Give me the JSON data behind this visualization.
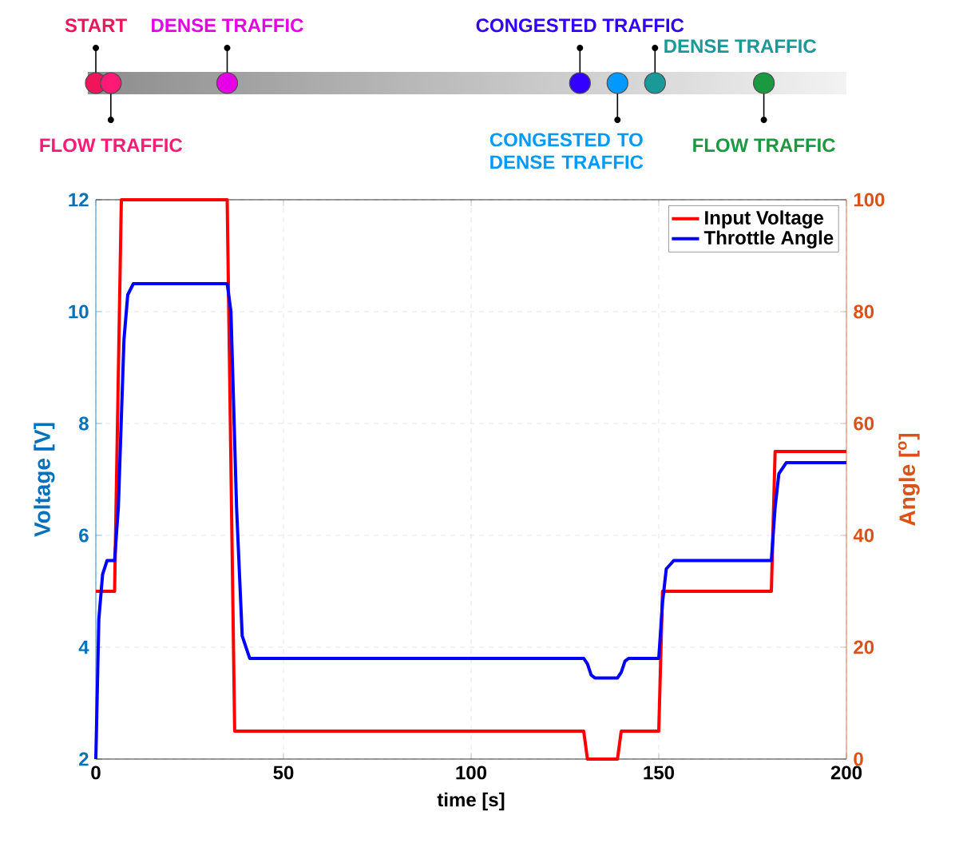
{
  "chart_data": {
    "type": "line",
    "xlabel": "time [s]",
    "ylabel": "Voltage [V]",
    "y2label": "Angle [$^{o}$]",
    "xlim": [
      0,
      200
    ],
    "xticks": [
      0,
      50,
      100,
      150,
      200
    ],
    "ylim": [
      2,
      12
    ],
    "yticks": [
      2,
      4,
      6,
      8,
      10,
      12
    ],
    "y2lim": [
      0,
      100
    ],
    "y2ticks": [
      0,
      20,
      40,
      60,
      80,
      100
    ],
    "grid": true,
    "legend": "top right",
    "marker": "none",
    "line_style": "solid",
    "series": [
      {
        "name": "Input Voltage",
        "color": "#ff0000",
        "axis": "y",
        "x": [
          0,
          5,
          6.8,
          35,
          37,
          130,
          131,
          139,
          140,
          150,
          151,
          180,
          181,
          200
        ],
        "values": [
          5,
          5,
          12,
          12,
          2.5,
          2.5,
          2,
          2,
          2.5,
          2.5,
          5,
          5,
          7.5,
          7.5
        ]
      },
      {
        "name": "Throttle Angle",
        "color": "#0000ff",
        "axis": "y2",
        "x": [
          0,
          0.8,
          1.8,
          3,
          5,
          6,
          7.5,
          8.5,
          10,
          35,
          36,
          37.5,
          39,
          41,
          130,
          131,
          132,
          133,
          139,
          140,
          141,
          142,
          150,
          151,
          152,
          154,
          180,
          181,
          182,
          184,
          200
        ],
        "values": [
          0,
          25,
          33,
          35.5,
          35.5,
          45,
          75,
          83,
          85,
          85,
          80,
          45,
          22,
          18,
          18,
          17,
          15,
          14.5,
          14.5,
          15.5,
          17.5,
          18,
          18,
          28,
          34,
          35.5,
          35.5,
          45,
          51,
          53,
          53
        ]
      }
    ],
    "annotations": [
      "START",
      "FLOW TRAFFIC",
      "DENSE TRAFFIC",
      "CONGESTED TRAFFIC",
      "CONGESTED TO DENSE TRAFFIC",
      "DENSE TRAFFIC",
      "FLOW TRAFFIC"
    ]
  }
}
